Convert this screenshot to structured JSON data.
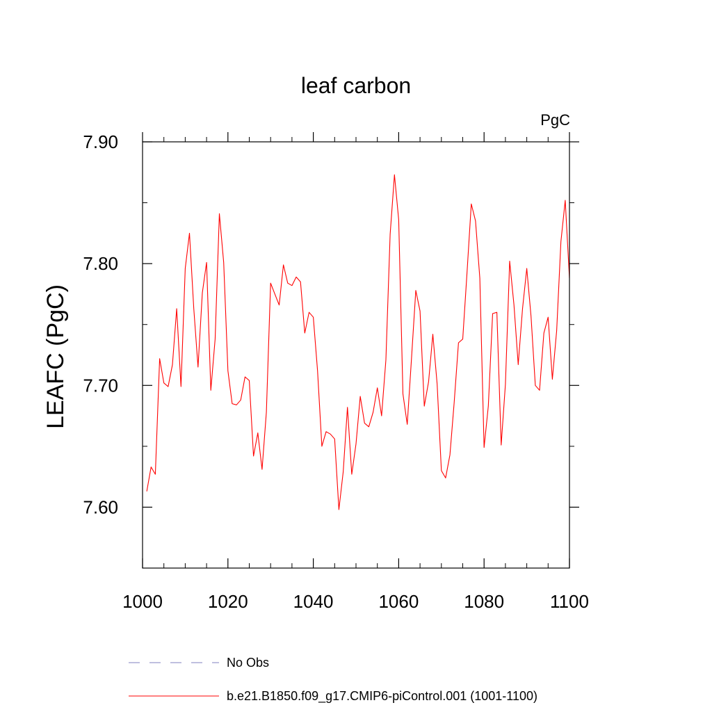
{
  "chart_data": {
    "type": "line",
    "title": "leaf carbon",
    "units_label": "PgC",
    "ylabel": "LEAFC  (PgC)",
    "xlabel": "",
    "xlim": [
      1000,
      1100
    ],
    "ylim": [
      7.55,
      7.9
    ],
    "x_ticks": [
      1000,
      1020,
      1040,
      1060,
      1080,
      1100
    ],
    "x_tick_labels": [
      "1000",
      "1020",
      "1040",
      "1060",
      "1080",
      "1100"
    ],
    "y_ticks": [
      7.6,
      7.7,
      7.8,
      7.9
    ],
    "y_tick_labels": [
      "7.60",
      "7.70",
      "7.80",
      "7.90"
    ],
    "grid": false,
    "legend_position": "bottom",
    "series": [
      {
        "name": "b.e21.B1850.f09_g17.CMIP6-piControl.001 (1001-1100)",
        "color": "#ff0000",
        "x": [
          1001,
          1002,
          1003,
          1004,
          1005,
          1006,
          1007,
          1008,
          1009,
          1010,
          1011,
          1012,
          1013,
          1014,
          1015,
          1016,
          1017,
          1018,
          1019,
          1020,
          1021,
          1022,
          1023,
          1024,
          1025,
          1026,
          1027,
          1028,
          1029,
          1030,
          1031,
          1032,
          1033,
          1034,
          1035,
          1036,
          1037,
          1038,
          1039,
          1040,
          1041,
          1042,
          1043,
          1044,
          1045,
          1046,
          1047,
          1048,
          1049,
          1050,
          1051,
          1052,
          1053,
          1054,
          1055,
          1056,
          1057,
          1058,
          1059,
          1060,
          1061,
          1062,
          1063,
          1064,
          1065,
          1066,
          1067,
          1068,
          1069,
          1070,
          1071,
          1072,
          1073,
          1074,
          1075,
          1076,
          1077,
          1078,
          1079,
          1080,
          1081,
          1082,
          1083,
          1084,
          1085,
          1086,
          1087,
          1088,
          1089,
          1090,
          1091,
          1092,
          1093,
          1094,
          1095,
          1096,
          1097,
          1098,
          1099,
          1100
        ],
        "values": [
          7.613,
          7.633,
          7.627,
          7.722,
          7.702,
          7.699,
          7.717,
          7.763,
          7.699,
          7.796,
          7.825,
          7.763,
          7.715,
          7.776,
          7.801,
          7.696,
          7.738,
          7.841,
          7.801,
          7.712,
          7.685,
          7.684,
          7.688,
          7.707,
          7.704,
          7.642,
          7.661,
          7.631,
          7.678,
          7.784,
          7.775,
          7.766,
          7.799,
          7.784,
          7.782,
          7.789,
          7.785,
          7.743,
          7.76,
          7.756,
          7.712,
          7.65,
          7.662,
          7.66,
          7.656,
          7.598,
          7.629,
          7.682,
          7.627,
          7.652,
          7.691,
          7.669,
          7.666,
          7.678,
          7.698,
          7.675,
          7.721,
          7.824,
          7.873,
          7.836,
          7.693,
          7.668,
          7.722,
          7.778,
          7.761,
          7.683,
          7.703,
          7.742,
          7.701,
          7.63,
          7.624,
          7.643,
          7.686,
          7.735,
          7.738,
          7.792,
          7.849,
          7.835,
          7.788,
          7.649,
          7.683,
          7.759,
          7.76,
          7.651,
          7.701,
          7.802,
          7.766,
          7.717,
          7.763,
          7.796,
          7.757,
          7.7,
          7.696,
          7.743,
          7.756,
          7.705,
          7.745,
          7.818,
          7.852,
          7.788
        ]
      }
    ],
    "legend": [
      {
        "label": "No Obs",
        "style": "dashed",
        "color": "#9999cc"
      },
      {
        "label": "b.e21.B1850.f09_g17.CMIP6-piControl.001 (1001-1100)",
        "style": "solid",
        "color": "#ff0000"
      }
    ]
  }
}
